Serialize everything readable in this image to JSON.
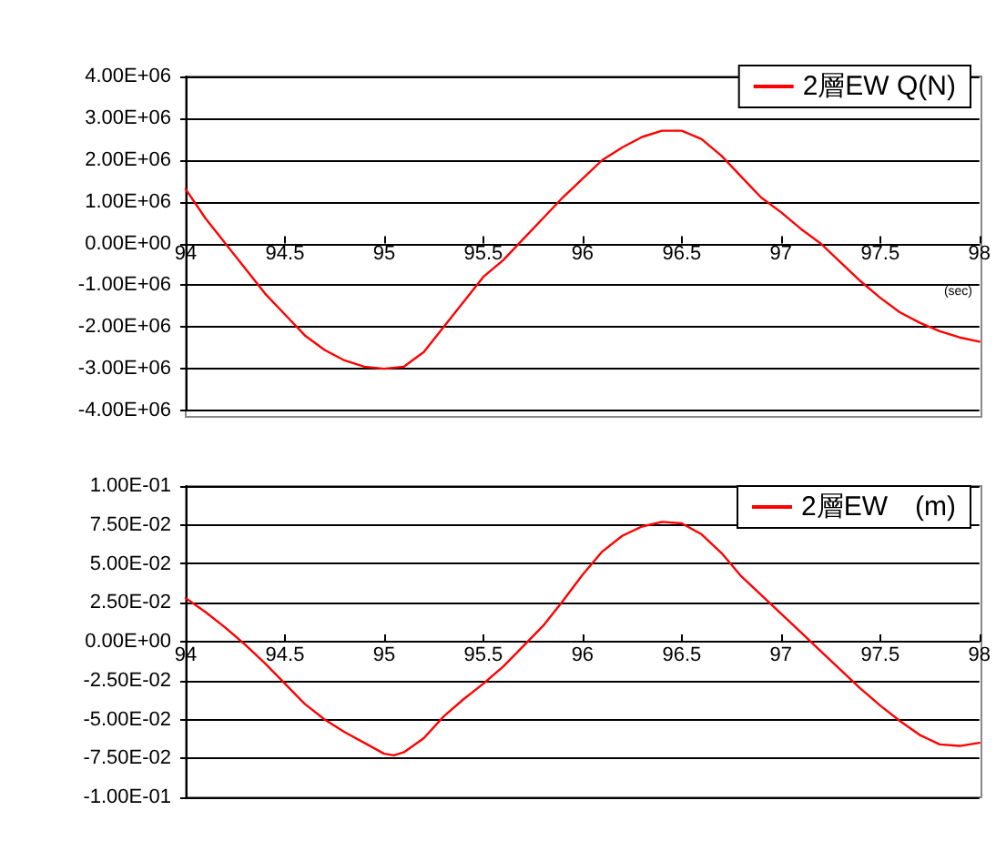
{
  "chart_data": [
    {
      "type": "line",
      "annotations": [
        "(sec)"
      ],
      "x": [
        94,
        94.1,
        94.2,
        94.3,
        94.4,
        94.5,
        94.6,
        94.7,
        94.8,
        94.9,
        95,
        95.1,
        95.2,
        95.3,
        95.4,
        95.5,
        95.6,
        95.7,
        95.8,
        95.9,
        96,
        96.1,
        96.2,
        96.3,
        96.4,
        96.5,
        96.6,
        96.7,
        96.8,
        96.9,
        97,
        97.1,
        97.2,
        97.3,
        97.4,
        97.5,
        97.6,
        97.7,
        97.8,
        97.9,
        98
      ],
      "series": [
        {
          "name": "2層EW Q(N)",
          "color": "#ff0000",
          "values": [
            1300000,
            600000,
            0,
            -600000,
            -1200000,
            -1700000,
            -2200000,
            -2550000,
            -2800000,
            -2950000,
            -3000000,
            -2950000,
            -2600000,
            -2000000,
            -1400000,
            -800000,
            -400000,
            100000,
            600000,
            1100000,
            1550000,
            2000000,
            2300000,
            2550000,
            2700000,
            2700000,
            2500000,
            2100000,
            1600000,
            1100000,
            750000,
            350000,
            0,
            -450000,
            -900000,
            -1300000,
            -1650000,
            -1900000,
            -2100000,
            -2250000,
            -2350000
          ]
        }
      ],
      "xlim": [
        94,
        98
      ],
      "xticks": [
        94,
        94.5,
        95,
        95.5,
        96,
        96.5,
        97,
        97.5,
        98
      ],
      "ylim": [
        -4000000,
        4000000
      ],
      "yticks": [
        {
          "value": -4000000,
          "label": "-4.00E+06"
        },
        {
          "value": -3000000,
          "label": "-3.00E+06"
        },
        {
          "value": -2000000,
          "label": "-2.00E+06"
        },
        {
          "value": -1000000,
          "label": "-1.00E+06"
        },
        {
          "value": 0,
          "label": "0.00E+00"
        },
        {
          "value": 1000000,
          "label": "1.00E+06"
        },
        {
          "value": 2000000,
          "label": "2.00E+06"
        },
        {
          "value": 3000000,
          "label": "3.00E+06"
        },
        {
          "value": 4000000,
          "label": "4.00E+06"
        }
      ],
      "grid": "y",
      "legend": "top right",
      "marker": "none",
      "line_style": "solid"
    },
    {
      "type": "line",
      "x": [
        94,
        94.1,
        94.2,
        94.3,
        94.4,
        94.5,
        94.6,
        94.7,
        94.8,
        94.9,
        95,
        95.05,
        95.1,
        95.2,
        95.3,
        95.4,
        95.5,
        95.6,
        95.7,
        95.8,
        95.9,
        96,
        96.1,
        96.2,
        96.3,
        96.4,
        96.5,
        96.6,
        96.7,
        96.8,
        96.9,
        97,
        97.1,
        97.2,
        97.3,
        97.4,
        97.5,
        97.6,
        97.7,
        97.8,
        97.9,
        98
      ],
      "series": [
        {
          "name": "2層EW　(m)",
          "color": "#ff0000",
          "values": [
            0.028,
            0.019,
            0.009,
            -0.002,
            -0.014,
            -0.027,
            -0.04,
            -0.05,
            -0.058,
            -0.065,
            -0.072,
            -0.073,
            -0.071,
            -0.062,
            -0.048,
            -0.037,
            -0.027,
            -0.016,
            -0.003,
            0.01,
            0.026,
            0.043,
            0.058,
            0.068,
            0.074,
            0.077,
            0.076,
            0.069,
            0.057,
            0.042,
            0.03,
            0.018,
            0.006,
            -0.006,
            -0.018,
            -0.03,
            -0.041,
            -0.051,
            -0.06,
            -0.066,
            -0.067,
            -0.065
          ]
        }
      ],
      "xlim": [
        94,
        98
      ],
      "xticks": [
        94,
        94.5,
        95,
        95.5,
        96,
        96.5,
        97,
        97.5,
        98
      ],
      "ylim": [
        -0.1,
        0.1
      ],
      "yticks": [
        {
          "value": -0.1,
          "label": "-1.00E-01"
        },
        {
          "value": -0.075,
          "label": "-7.50E-02"
        },
        {
          "value": -0.05,
          "label": "-5.00E-02"
        },
        {
          "value": -0.025,
          "label": "-2.50E-02"
        },
        {
          "value": 0,
          "label": "0.00E+00"
        },
        {
          "value": 0.025,
          "label": "2.50E-02"
        },
        {
          "value": 0.05,
          "label": "5.00E-02"
        },
        {
          "value": 0.075,
          "label": "7.50E-02"
        },
        {
          "value": 0.1,
          "label": "1.00E-01"
        }
      ],
      "grid": "y",
      "legend": "top right",
      "marker": "none",
      "line_style": "solid"
    }
  ]
}
